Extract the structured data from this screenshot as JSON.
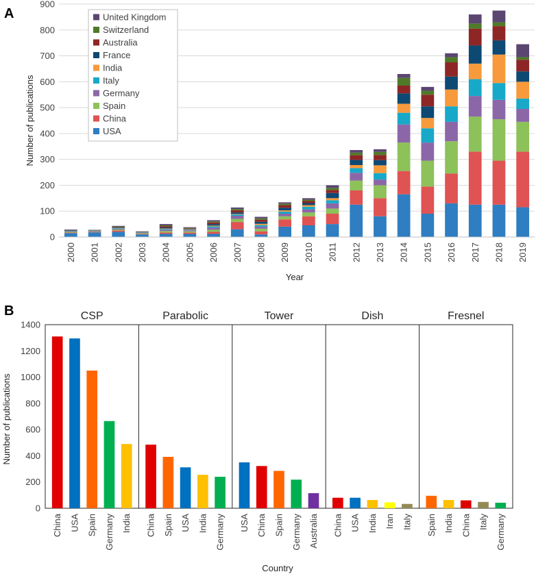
{
  "chart_data": [
    {
      "panel": "A",
      "type": "bar",
      "stacked": true,
      "title": "",
      "xlabel": "Year",
      "ylabel": "Number of publications",
      "ylim": [
        0,
        900
      ],
      "yticks": [
        "0",
        "100",
        "200",
        "300",
        "400",
        "500",
        "600",
        "700",
        "800",
        "900"
      ],
      "categories": [
        "2000",
        "2001",
        "2002",
        "2003",
        "2004",
        "2005",
        "2006",
        "2007",
        "2008",
        "2009",
        "2010",
        "2011",
        "2012",
        "2013",
        "2014",
        "2015",
        "2016",
        "2017",
        "2018",
        "2019"
      ],
      "legend_position": "top-left",
      "series": [
        {
          "name": "USA",
          "color": "#2E7EC1",
          "values": [
            15,
            18,
            20,
            10,
            12,
            12,
            12,
            30,
            10,
            40,
            45,
            50,
            125,
            80,
            165,
            90,
            130,
            125,
            125,
            115
          ]
        },
        {
          "name": "China",
          "color": "#E05353",
          "values": [
            2,
            2,
            5,
            2,
            5,
            5,
            8,
            28,
            12,
            28,
            35,
            40,
            55,
            70,
            90,
            105,
            115,
            205,
            170,
            215
          ]
        },
        {
          "name": "Spain",
          "color": "#8DC159",
          "values": [
            3,
            2,
            4,
            3,
            6,
            5,
            8,
            12,
            10,
            12,
            15,
            20,
            38,
            50,
            110,
            100,
            125,
            135,
            160,
            115
          ]
        },
        {
          "name": "Germany",
          "color": "#8C67A8",
          "values": [
            2,
            2,
            3,
            2,
            5,
            4,
            8,
            12,
            8,
            10,
            12,
            20,
            30,
            22,
            70,
            70,
            75,
            80,
            75,
            50
          ]
        },
        {
          "name": "Italy",
          "color": "#18A9C9",
          "values": [
            1,
            1,
            2,
            1,
            3,
            2,
            5,
            5,
            6,
            8,
            10,
            12,
            18,
            25,
            45,
            55,
            60,
            65,
            65,
            40
          ]
        },
        {
          "name": "India",
          "color": "#F79A3C",
          "values": [
            0,
            0,
            1,
            0,
            2,
            2,
            3,
            2,
            5,
            5,
            6,
            8,
            12,
            30,
            35,
            40,
            65,
            60,
            110,
            65
          ]
        },
        {
          "name": "France",
          "color": "#0D4973",
          "values": [
            2,
            1,
            2,
            1,
            4,
            2,
            6,
            6,
            8,
            10,
            8,
            20,
            20,
            20,
            40,
            45,
            50,
            70,
            55,
            40
          ]
        },
        {
          "name": "Australia",
          "color": "#8E2626",
          "values": [
            1,
            0,
            2,
            1,
            5,
            2,
            6,
            8,
            8,
            10,
            8,
            12,
            18,
            20,
            30,
            45,
            55,
            65,
            55,
            45
          ]
        },
        {
          "name": "Switzerland",
          "color": "#4F7A28",
          "values": [
            1,
            1,
            2,
            1,
            3,
            2,
            4,
            5,
            5,
            6,
            5,
            8,
            10,
            12,
            30,
            15,
            20,
            20,
            15,
            10
          ]
        },
        {
          "name": "United Kingdom",
          "color": "#5B4672",
          "values": [
            2,
            1,
            2,
            1,
            5,
            2,
            5,
            6,
            6,
            5,
            6,
            10,
            10,
            10,
            15,
            15,
            15,
            35,
            45,
            50
          ]
        }
      ]
    },
    {
      "panel": "B",
      "type": "bar",
      "title": "",
      "xlabel": "Country",
      "ylabel": "Number of publications",
      "ylim": [
        0,
        1400
      ],
      "yticks": [
        "0",
        "200",
        "400",
        "600",
        "800",
        "1000",
        "1200",
        "1400"
      ],
      "groups": [
        {
          "name": "CSP",
          "bars": [
            {
              "label": "China",
              "value": 1310,
              "color": "#E00000"
            },
            {
              "label": "USA",
              "value": 1295,
              "color": "#0070C0"
            },
            {
              "label": "Spain",
              "value": 1050,
              "color": "#FF6600"
            },
            {
              "label": "Germany",
              "value": 665,
              "color": "#00B050"
            },
            {
              "label": "India",
              "value": 490,
              "color": "#FFC000"
            }
          ]
        },
        {
          "name": "Parabolic",
          "bars": [
            {
              "label": "China",
              "value": 485,
              "color": "#E00000"
            },
            {
              "label": "Spain",
              "value": 392,
              "color": "#FF6600"
            },
            {
              "label": "USA",
              "value": 312,
              "color": "#0070C0"
            },
            {
              "label": "India",
              "value": 255,
              "color": "#FFC000"
            },
            {
              "label": "Germany",
              "value": 240,
              "color": "#00B050"
            }
          ]
        },
        {
          "name": "Tower",
          "bars": [
            {
              "label": "USA",
              "value": 350,
              "color": "#0070C0"
            },
            {
              "label": "China",
              "value": 322,
              "color": "#E00000"
            },
            {
              "label": "Spain",
              "value": 285,
              "color": "#FF6600"
            },
            {
              "label": "Germany",
              "value": 218,
              "color": "#00B050"
            },
            {
              "label": "Australia",
              "value": 115,
              "color": "#7030A0"
            }
          ]
        },
        {
          "name": "Dish",
          "bars": [
            {
              "label": "China",
              "value": 80,
              "color": "#E00000"
            },
            {
              "label": "USA",
              "value": 80,
              "color": "#0070C0"
            },
            {
              "label": "India",
              "value": 63,
              "color": "#FFC000"
            },
            {
              "label": "Iran",
              "value": 45,
              "color": "#FFFF00"
            },
            {
              "label": "Italy",
              "value": 33,
              "color": "#948A54"
            }
          ]
        },
        {
          "name": "Fresnel",
          "bars": [
            {
              "label": "Spain",
              "value": 95,
              "color": "#FF6600"
            },
            {
              "label": "India",
              "value": 63,
              "color": "#FFC000"
            },
            {
              "label": "China",
              "value": 60,
              "color": "#E00000"
            },
            {
              "label": "Italy",
              "value": 48,
              "color": "#948A54"
            },
            {
              "label": "Germany",
              "value": 42,
              "color": "#00B050"
            }
          ]
        }
      ]
    }
  ]
}
